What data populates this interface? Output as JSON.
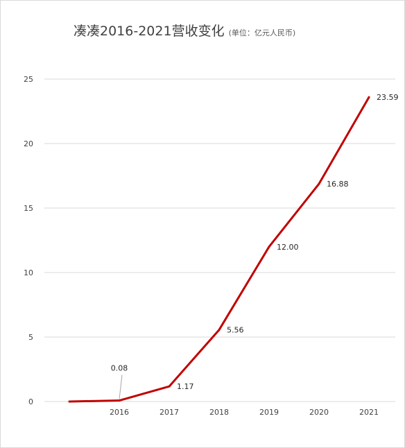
{
  "chart_data": {
    "type": "line",
    "title": "凑凑2016-2021营收变化",
    "subtitle": "(单位：亿元人民币)",
    "categories": [
      "2016",
      "2017",
      "2018",
      "2019",
      "2020",
      "2021"
    ],
    "series": [
      {
        "values": [
          0.08,
          1.17,
          5.56,
          12.0,
          16.88,
          23.59
        ],
        "labels": [
          "0.08",
          "1.17",
          "5.56",
          "12.00",
          "16.88",
          "23.59"
        ],
        "color": "#c00000"
      }
    ],
    "origin_value": 0,
    "yticks": [
      "0",
      "5",
      "10",
      "15",
      "20",
      "25"
    ],
    "ylim": [
      0,
      25
    ],
    "grid": true,
    "xlabel": "",
    "ylabel": ""
  }
}
